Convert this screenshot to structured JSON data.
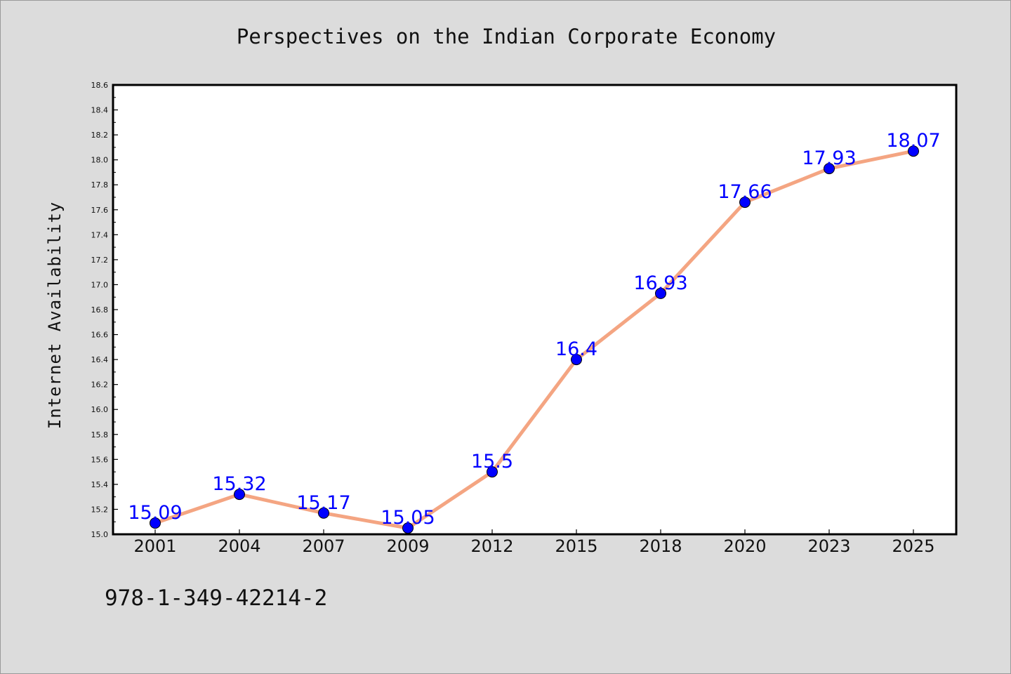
{
  "chart_data": {
    "type": "line",
    "title": "Perspectives on the Indian Corporate Economy",
    "xlabel": "",
    "ylabel": "Internet Availability",
    "categories": [
      "2001",
      "2004",
      "2007",
      "2009",
      "2012",
      "2015",
      "2018",
      "2020",
      "2023",
      "2025"
    ],
    "series": [
      {
        "values": [
          15.09,
          15.32,
          15.17,
          15.05,
          15.5,
          16.4,
          16.93,
          17.66,
          17.93,
          18.07
        ],
        "data_labels": [
          "15.09",
          "15.32",
          "15.17",
          "15.05",
          "15.5",
          "16.4",
          "16.93",
          "17.66",
          "17.93",
          "18.07"
        ],
        "line_color": "#f4a582",
        "marker_color": "#0000ff"
      }
    ],
    "ylim": [
      15.0,
      18.6
    ],
    "yticks": [
      "15.0",
      "15.2",
      "15.4",
      "15.6",
      "15.8",
      "16.0",
      "16.2",
      "16.4",
      "16.6",
      "16.8",
      "17.0",
      "17.2",
      "17.4",
      "17.6",
      "17.8",
      "18.0",
      "18.2",
      "18.4",
      "18.6"
    ],
    "grid": false,
    "legend": "none"
  },
  "footer": {
    "isbn": "978-1-349-42214-2"
  },
  "colors": {
    "background": "#dcdcdc",
    "plot_background": "#ffffff",
    "line": "#f4a582",
    "marker": "#0000ff",
    "data_label": "#0000ff"
  }
}
